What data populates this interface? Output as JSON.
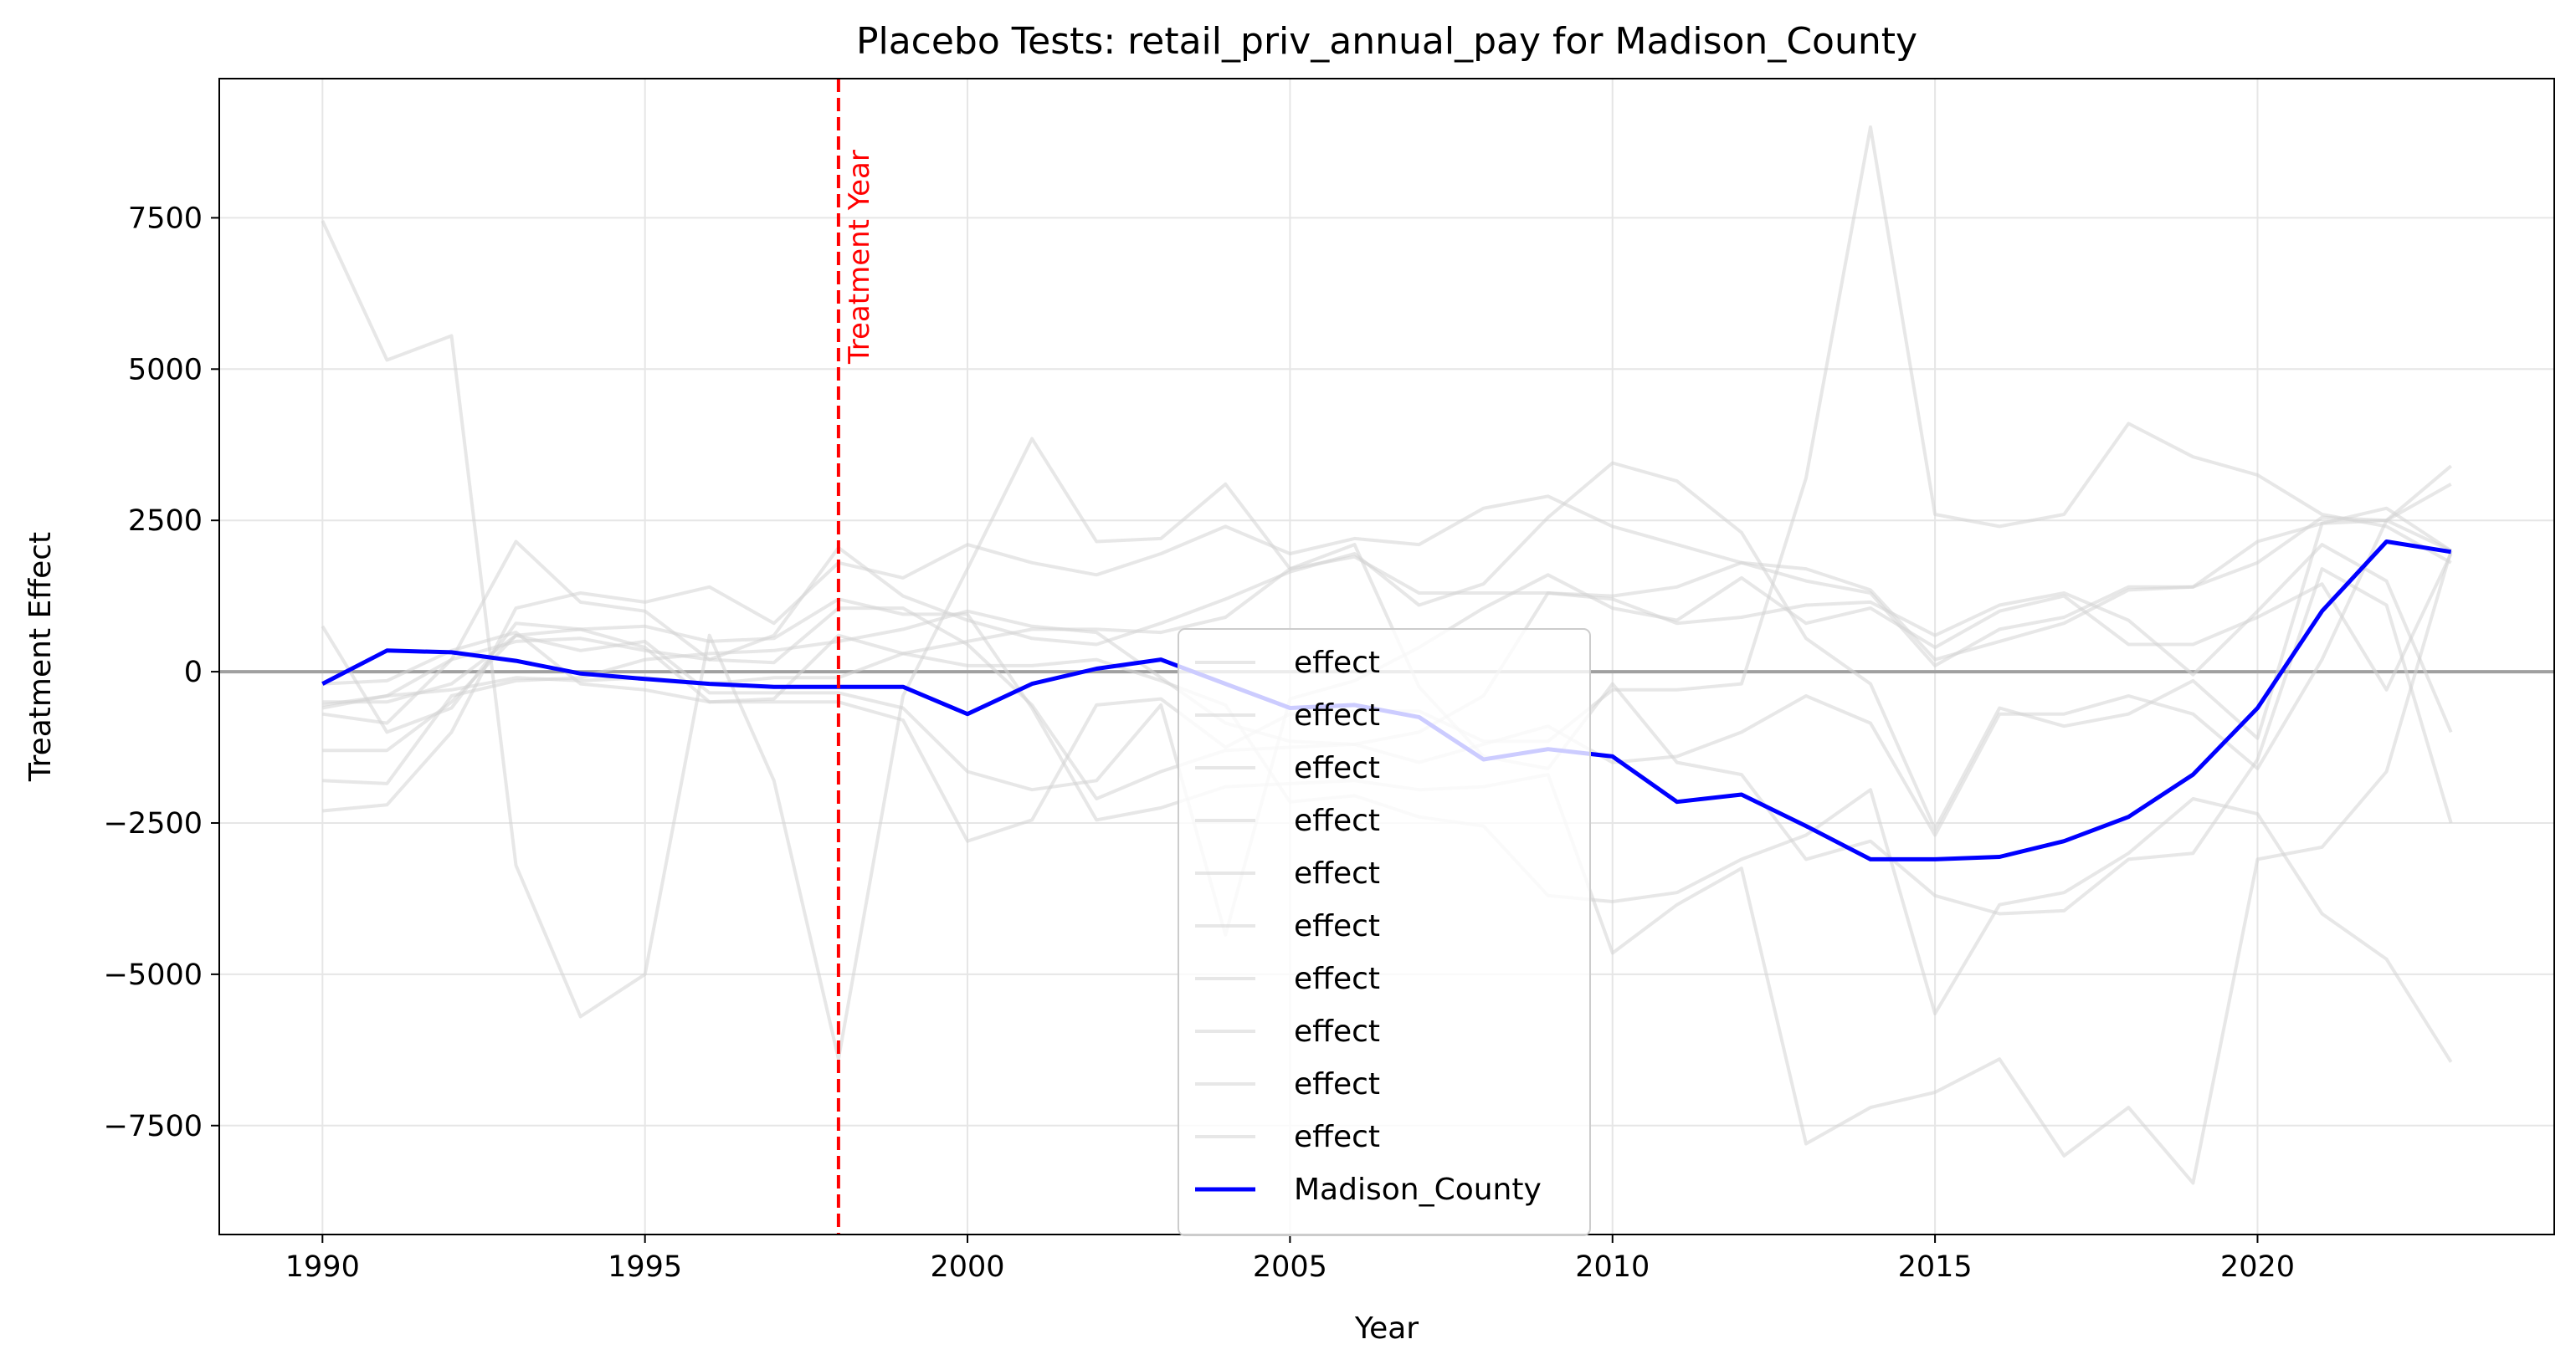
{
  "chart_data": {
    "type": "line",
    "title": "Placebo Tests: retail_priv_annual_pay for Madison_County",
    "xlabel": "Year",
    "ylabel": "Treatment Effect",
    "xlim": [
      1988.4,
      2024.6
    ],
    "ylim": [
      -9300,
      9800
    ],
    "x_ticks": [
      1990,
      1995,
      2000,
      2005,
      2010,
      2015,
      2020
    ],
    "y_ticks": [
      -7500,
      -5000,
      -2500,
      0,
      2500,
      5000,
      7500
    ],
    "x_tick_labels": [
      "1990",
      "1995",
      "2000",
      "2005",
      "2010",
      "2015",
      "2020"
    ],
    "y_tick_labels": [
      "−7500",
      "−5000",
      "−2500",
      "0",
      "2500",
      "5000",
      "7500"
    ],
    "grid": true,
    "legend_position": "bottom-center",
    "zero_line_color": "#a0a0a0",
    "treatment_year": 1998,
    "treatment_label": "Treatment Year",
    "treatment_color": "#ff0000",
    "placebo_color": "#d3d3d3",
    "main_color": "#0000ff",
    "x": [
      1990,
      1991,
      1992,
      1993,
      1994,
      1995,
      1996,
      1997,
      1998,
      1999,
      2000,
      2001,
      2002,
      2003,
      2004,
      2005,
      2006,
      2007,
      2008,
      2009,
      2010,
      2011,
      2012,
      2013,
      2014,
      2015,
      2016,
      2017,
      2018,
      2019,
      2020,
      2021,
      2022,
      2023
    ],
    "series": [
      {
        "name": "effect",
        "role": "placebo",
        "values": [
          7450,
          5150,
          5550,
          -3200,
          -5700,
          -5000,
          600,
          -1800,
          -6400,
          -400,
          1700,
          3850,
          2150,
          2200,
          3100,
          1700,
          2100,
          -250,
          -1400,
          -1600,
          -200,
          -1500,
          -1700,
          -3100,
          -2800,
          -3700,
          -4000,
          -3950,
          -3100,
          -3000,
          -1450,
          1700,
          1100,
          -2500
        ]
      },
      {
        "name": "effect",
        "role": "placebo",
        "values": [
          -2300,
          -2200,
          -1000,
          1050,
          1300,
          1150,
          1400,
          800,
          1800,
          1550,
          2100,
          1800,
          1600,
          1950,
          2400,
          1950,
          2200,
          2100,
          2700,
          2900,
          2400,
          2100,
          1800,
          1700,
          1350,
          200,
          500,
          800,
          1350,
          1400,
          2150,
          2450,
          2500,
          2000
        ]
      },
      {
        "name": "effect",
        "role": "placebo",
        "values": [
          -700,
          -850,
          200,
          2150,
          1150,
          1000,
          200,
          600,
          2050,
          1250,
          850,
          550,
          450,
          800,
          1200,
          1650,
          1950,
          1100,
          1450,
          2550,
          3450,
          3150,
          2300,
          550,
          -200,
          -2600,
          -600,
          -900,
          -700,
          -150,
          -1100,
          2450,
          2700,
          2000
        ]
      },
      {
        "name": "effect",
        "role": "placebo",
        "values": [
          750,
          -1000,
          -600,
          800,
          700,
          750,
          500,
          550,
          1200,
          950,
          950,
          -600,
          -2450,
          -2250,
          -1900,
          -1850,
          -1800,
          -1950,
          -1900,
          -1700,
          -4650,
          -3850,
          -3250,
          -7800,
          -7200,
          -6950,
          -6400,
          -8000,
          -7200,
          -8450,
          -3100,
          -2900,
          -1650,
          2000
        ]
      },
      {
        "name": "effect",
        "role": "placebo",
        "values": [
          -1800,
          -1850,
          -400,
          -150,
          -100,
          200,
          300,
          350,
          500,
          700,
          1000,
          750,
          650,
          -100,
          -850,
          -1150,
          -1200,
          -1500,
          -1200,
          -900,
          -1500,
          -1400,
          -1000,
          -400,
          -850,
          -2700,
          -700,
          -700,
          -400,
          -700,
          -1600,
          200,
          2500,
          3100
        ]
      },
      {
        "name": "effect",
        "role": "placebo",
        "values": [
          -600,
          -400,
          200,
          500,
          550,
          350,
          200,
          150,
          1050,
          1050,
          450,
          -550,
          -2100,
          -1650,
          -1300,
          -1250,
          -1200,
          -1000,
          -400,
          1300,
          1250,
          1400,
          1800,
          1500,
          1300,
          100,
          700,
          900,
          1400,
          1400,
          1800,
          2550,
          2500,
          3400
        ]
      },
      {
        "name": "effect",
        "role": "placebo",
        "values": [
          -1300,
          -1300,
          -500,
          600,
          350,
          500,
          -350,
          -350,
          -350,
          -600,
          -1650,
          -1950,
          -1800,
          -550,
          -4350,
          -450,
          -150,
          400,
          1050,
          1600,
          1050,
          850,
          1550,
          800,
          1050,
          400,
          1000,
          1250,
          450,
          450,
          900,
          1450,
          -300,
          1950
        ]
      },
      {
        "name": "effect",
        "role": "placebo",
        "values": [
          -500,
          -500,
          -200,
          600,
          700,
          400,
          -500,
          -450,
          600,
          300,
          100,
          100,
          200,
          -150,
          -550,
          -2150,
          -2050,
          -2400,
          -2550,
          -3700,
          -3800,
          -3650,
          -3100,
          -2700,
          -1950,
          -5650,
          -3850,
          -3650,
          -3000,
          -2100,
          -2350,
          -4000,
          -4750,
          -6450
        ]
      },
      {
        "name": "effect",
        "role": "placebo",
        "values": [
          -200,
          -150,
          350,
          650,
          -200,
          -300,
          -500,
          -500,
          -500,
          -800,
          -2800,
          -2450,
          -550,
          -450,
          -1250,
          -700,
          -650,
          -650,
          -1150,
          -1150,
          -300,
          -300,
          -200,
          3200,
          9000,
          2600,
          2400,
          2600,
          4100,
          3550,
          3250,
          2600,
          2400,
          1800
        ]
      },
      {
        "name": "effect",
        "role": "placebo",
        "values": [
          -550,
          -400,
          -300,
          -100,
          -150,
          -100,
          -200,
          -100,
          -100,
          300,
          500,
          700,
          700,
          650,
          900,
          1700,
          1900,
          1300,
          1300,
          1300,
          1200,
          800,
          900,
          1100,
          1150,
          600,
          1100,
          1300,
          850,
          -50,
          1000,
          2100,
          1500,
          -1000
        ]
      },
      {
        "name": "Madison_County",
        "role": "treated",
        "values": [
          -200,
          350,
          320,
          180,
          -30,
          -120,
          -200,
          -250,
          -250,
          -250,
          -700,
          -200,
          50,
          200,
          -200,
          -600,
          -550,
          -750,
          -1450,
          -1280,
          -1400,
          -2150,
          -2030,
          -2550,
          -3100,
          -3100,
          -3060,
          -2800,
          -2400,
          -1700,
          -600,
          1000,
          2150,
          1980
        ]
      }
    ]
  }
}
